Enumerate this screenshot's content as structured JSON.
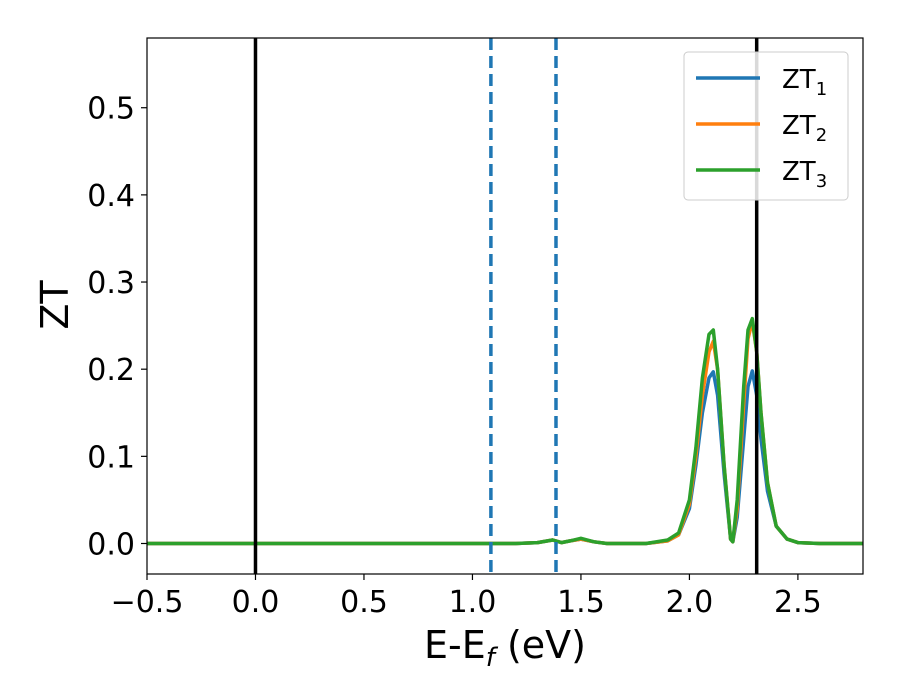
{
  "chart_data": {
    "type": "line",
    "title": "",
    "xlabel": "E-E",
    "xlabel_sub": "f",
    "xlabel_unit": " (eV)",
    "ylabel": "ZT",
    "xlim": [
      -0.5,
      2.8
    ],
    "ylim": [
      -0.035,
      0.58
    ],
    "xticks": [
      -0.5,
      0.0,
      0.5,
      1.0,
      1.5,
      2.0,
      2.5
    ],
    "xtick_labels": [
      "−0.5",
      "0.0",
      "0.5",
      "1.0",
      "1.5",
      "2.0",
      "2.5"
    ],
    "yticks": [
      0.0,
      0.1,
      0.2,
      0.3,
      0.4,
      0.5
    ],
    "ytick_labels": [
      "0.0",
      "0.1",
      "0.2",
      "0.3",
      "0.4",
      "0.5"
    ],
    "grid": false,
    "legend_position": "top-right",
    "vlines": [
      {
        "x": 0.0,
        "style": "solid",
        "color": "#000000"
      },
      {
        "x": 2.31,
        "style": "solid",
        "color": "#000000"
      },
      {
        "x": 1.085,
        "style": "dashed",
        "color": "#1f77b4"
      },
      {
        "x": 1.385,
        "style": "dashed",
        "color": "#1f77b4"
      }
    ],
    "series": [
      {
        "name": "ZT",
        "sub": "1",
        "color": "#1f77b4",
        "x": [
          -0.5,
          1.2,
          1.3,
          1.37,
          1.41,
          1.45,
          1.5,
          1.56,
          1.62,
          1.7,
          1.8,
          1.9,
          1.95,
          2.0,
          2.03,
          2.06,
          2.09,
          2.11,
          2.13,
          2.16,
          2.19,
          2.2,
          2.22,
          2.25,
          2.27,
          2.29,
          2.31,
          2.33,
          2.36,
          2.4,
          2.45,
          2.5,
          2.6,
          2.8
        ],
        "y": [
          0.0,
          0.0,
          0.001,
          0.004,
          0.001,
          0.003,
          0.005,
          0.002,
          0.0,
          0.0,
          0.0,
          0.003,
          0.01,
          0.04,
          0.09,
          0.15,
          0.19,
          0.197,
          0.17,
          0.08,
          0.005,
          0.002,
          0.03,
          0.12,
          0.18,
          0.198,
          0.17,
          0.12,
          0.06,
          0.02,
          0.005,
          0.001,
          0.0,
          0.0
        ]
      },
      {
        "name": "ZT",
        "sub": "2",
        "color": "#ff7f0e",
        "x": [
          -0.5,
          1.2,
          1.3,
          1.37,
          1.41,
          1.45,
          1.5,
          1.56,
          1.62,
          1.7,
          1.8,
          1.9,
          1.95,
          2.0,
          2.03,
          2.06,
          2.09,
          2.11,
          2.13,
          2.16,
          2.19,
          2.2,
          2.22,
          2.25,
          2.27,
          2.29,
          2.31,
          2.33,
          2.36,
          2.4,
          2.45,
          2.5,
          2.6,
          2.8
        ],
        "y": [
          0.0,
          0.0,
          0.001,
          0.004,
          0.001,
          0.003,
          0.005,
          0.002,
          0.0,
          0.0,
          0.0,
          0.003,
          0.01,
          0.045,
          0.1,
          0.17,
          0.22,
          0.232,
          0.2,
          0.09,
          0.005,
          0.002,
          0.04,
          0.16,
          0.235,
          0.255,
          0.22,
          0.15,
          0.07,
          0.02,
          0.005,
          0.001,
          0.0,
          0.0
        ]
      },
      {
        "name": "ZT",
        "sub": "3",
        "color": "#2ca02c",
        "x": [
          -0.5,
          1.2,
          1.3,
          1.37,
          1.41,
          1.45,
          1.5,
          1.56,
          1.62,
          1.7,
          1.8,
          1.9,
          1.95,
          2.0,
          2.03,
          2.06,
          2.09,
          2.11,
          2.13,
          2.16,
          2.19,
          2.2,
          2.22,
          2.25,
          2.27,
          2.29,
          2.31,
          2.33,
          2.36,
          2.4,
          2.45,
          2.5,
          2.6,
          2.8
        ],
        "y": [
          0.0,
          0.0,
          0.001,
          0.004,
          0.001,
          0.003,
          0.006,
          0.002,
          0.0,
          0.0,
          0.0,
          0.004,
          0.012,
          0.05,
          0.11,
          0.19,
          0.24,
          0.245,
          0.2,
          0.09,
          0.005,
          0.002,
          0.05,
          0.18,
          0.245,
          0.258,
          0.22,
          0.15,
          0.07,
          0.02,
          0.005,
          0.001,
          0.0,
          0.0
        ]
      }
    ]
  }
}
